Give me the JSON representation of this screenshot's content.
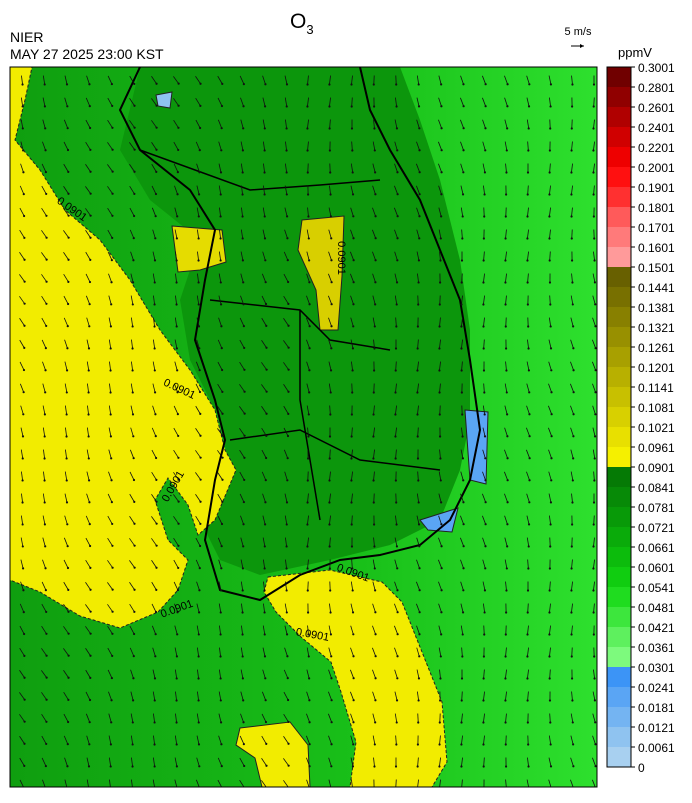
{
  "header": {
    "agency": "NIER",
    "datetime": "MAY 27 2025 23:00 KST",
    "title": {
      "base": "O",
      "sub": "3"
    }
  },
  "wind_reference": "5 m/s",
  "colorbar": {
    "unit": "ppmV",
    "levels": [
      0,
      0.0061,
      0.0121,
      0.0181,
      0.0241,
      0.0301,
      0.0361,
      0.0421,
      0.0481,
      0.0541,
      0.0601,
      0.0661,
      0.0721,
      0.0781,
      0.0841,
      0.0901,
      0.0961,
      0.1021,
      0.1081,
      0.1141,
      0.1201,
      0.1261,
      0.1321,
      0.1381,
      0.1441,
      0.1501,
      0.1601,
      0.1701,
      0.1801,
      0.1901,
      0.2001,
      0.2201,
      0.2401,
      0.2601,
      0.2801,
      0.3001
    ],
    "colors": [
      "#a8d0f0",
      "#8fc3f0",
      "#74b4f2",
      "#5aa5f4",
      "#3c94f6",
      "#7dfa7d",
      "#5ef05e",
      "#3de63d",
      "#1fdc1f",
      "#10cd10",
      "#0cbc0c",
      "#0aab0a",
      "#089a08",
      "#078a07",
      "#057a05",
      "#f5f000",
      "#e8e000",
      "#d8d000",
      "#c8c000",
      "#b8b000",
      "#a8a000",
      "#989000",
      "#888000",
      "#787000",
      "#686000",
      "#ff9a9a",
      "#ff7a7a",
      "#ff5a5a",
      "#ff3030",
      "#ff1010",
      "#ee0000",
      "#d00000",
      "#b00000",
      "#900000",
      "#700000"
    ]
  },
  "contour_labels": [
    "0.0901",
    "0.0901",
    "0.0901",
    "0.0901",
    "0.0901",
    "0.0901",
    "0.0901"
  ]
}
